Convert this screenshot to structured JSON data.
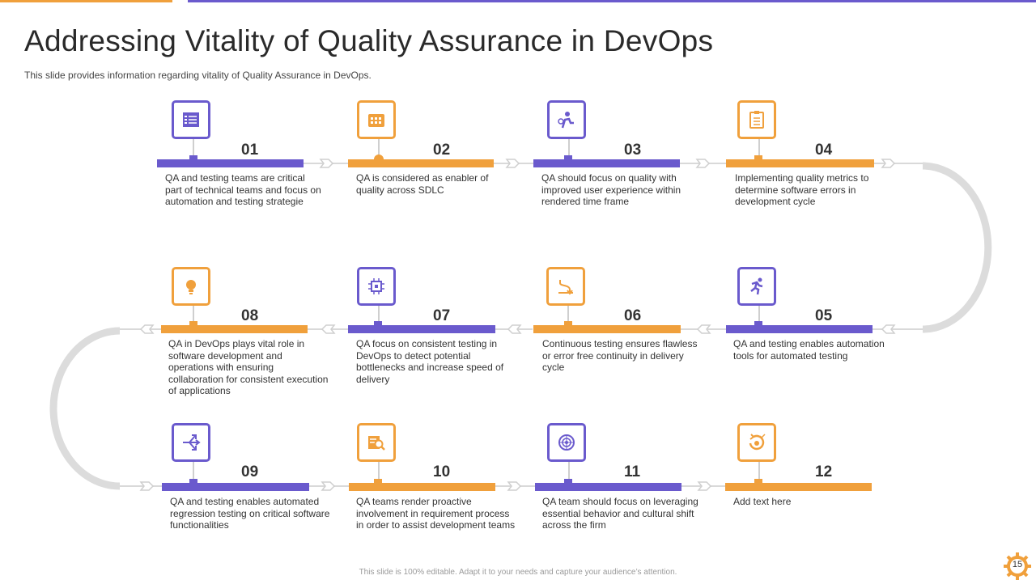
{
  "slide": {
    "title": "Addressing Vitality of Quality Assurance in DevOps",
    "subtitle": "This slide provides information regarding vitality of Quality Assurance in DevOps.",
    "footer": "This slide is 100% editable. Adapt it to your needs and capture your audience’s attention.",
    "page_number": "15"
  },
  "colors": {
    "purple": "#6a5acd",
    "orange": "#f0a03c",
    "connector": "#d6d6d6"
  },
  "steps": [
    {
      "number": "01",
      "color": "purple",
      "icon": "checklist-icon",
      "text": "QA and testing teams are critical part of technical teams and focus on automation and testing strategie"
    },
    {
      "number": "02",
      "color": "orange",
      "icon": "calendar-grid-icon",
      "text": "QA is considered as enabler of quality across SDLC"
    },
    {
      "number": "03",
      "color": "purple",
      "icon": "user-progress-icon",
      "text": "QA should focus on quality with improved user experience within rendered time frame"
    },
    {
      "number": "04",
      "color": "orange",
      "icon": "clipboard-icon",
      "text": "Implementing quality metrics to determine software errors in development cycle"
    },
    {
      "number": "05",
      "color": "purple",
      "icon": "running-person-icon",
      "text": "QA and testing enables automation tools for automated testing"
    },
    {
      "number": "06",
      "color": "orange",
      "icon": "path-arrow-icon",
      "text": "Continuous testing ensures flawless or error free continuity in delivery cycle"
    },
    {
      "number": "07",
      "color": "purple",
      "icon": "processor-chip-icon",
      "text": "QA focus on consistent testing in DevOps to detect potential bottlenecks and increase speed of delivery"
    },
    {
      "number": "08",
      "color": "orange",
      "icon": "lightbulb-icon",
      "text": "QA in DevOps plays vital role in software development and operations with ensuring collaboration for consistent execution of applications"
    },
    {
      "number": "09",
      "color": "purple",
      "icon": "split-arrows-icon",
      "text": "QA and testing enables automated regression testing on critical software functionalities"
    },
    {
      "number": "10",
      "color": "orange",
      "icon": "search-document-icon",
      "text": "QA teams render proactive involvement in requirement process in order to assist development teams"
    },
    {
      "number": "11",
      "color": "purple",
      "icon": "globe-target-icon",
      "text": "QA team should focus on leveraging essential behavior and cultural shift across the firm"
    },
    {
      "number": "12",
      "color": "orange",
      "icon": "refresh-check-icon",
      "text": "Add text here"
    }
  ]
}
